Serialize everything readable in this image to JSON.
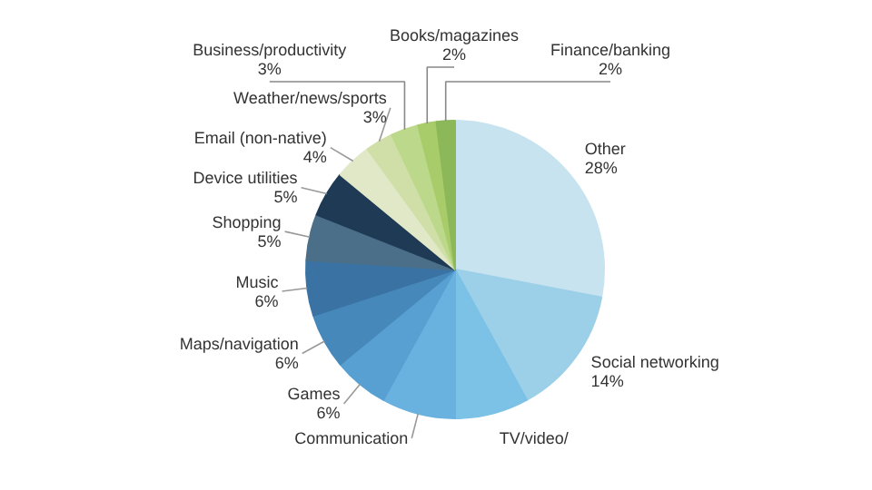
{
  "chart_data": {
    "type": "pie",
    "categories": [
      "Other",
      "Social networking",
      "TV/video/",
      "Communication",
      "Games",
      "Maps/navigation",
      "Music",
      "Shopping",
      "Device utilities",
      "Email (non-native)",
      "Weather/news/sports",
      "Business/productivity",
      "Books/magazines",
      "Finance/banking"
    ],
    "values": [
      28,
      14,
      8,
      8,
      6,
      6,
      6,
      5,
      5,
      4,
      3,
      3,
      2,
      2
    ],
    "value_labels": [
      "28%",
      "14%",
      null,
      null,
      "6%",
      "6%",
      "6%",
      "5%",
      "5%",
      "4%",
      "3%",
      "3%",
      "2%",
      "2%"
    ],
    "colors": [
      "#c6e3ef",
      "#9ccfe8",
      "#7cc1e6",
      "#69b2e0",
      "#58a0d2",
      "#4788bb",
      "#3a73a3",
      "#4b6f88",
      "#1f3a55",
      "#e0e8c8",
      "#d0dfa8",
      "#bcd88a",
      "#a8cc6a",
      "#8cb85a"
    ]
  }
}
